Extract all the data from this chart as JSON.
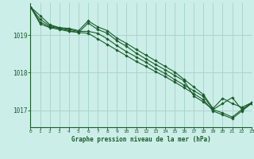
{
  "title": "Graphe pression niveau de la mer (hPa)",
  "background_color": "#cceee8",
  "grid_color": "#aad4cc",
  "line_color": "#1a5c2a",
  "marker_color": "#1a5c2a",
  "xlim": [
    0,
    23
  ],
  "ylim": [
    1016.55,
    1019.85
  ],
  "yticks": [
    1017,
    1018,
    1019
  ],
  "xticks": [
    0,
    1,
    2,
    3,
    4,
    5,
    6,
    7,
    8,
    9,
    10,
    11,
    12,
    13,
    14,
    15,
    16,
    17,
    18,
    19,
    20,
    21,
    22,
    23
  ],
  "lines": [
    [
      1019.75,
      1019.52,
      1019.28,
      1019.2,
      1019.18,
      1019.12,
      1019.38,
      1019.22,
      1019.12,
      1018.92,
      1018.78,
      1018.62,
      1018.47,
      1018.32,
      1018.17,
      1018.02,
      1017.82,
      1017.62,
      1017.42,
      1017.05,
      1017.32,
      1017.18,
      1017.08,
      1017.2
    ],
    [
      1019.75,
      1019.42,
      1019.25,
      1019.19,
      1019.15,
      1019.1,
      1019.1,
      1019.05,
      1018.9,
      1018.72,
      1018.56,
      1018.42,
      1018.28,
      1018.12,
      1017.98,
      1017.82,
      1017.67,
      1017.52,
      1017.37,
      1017.02,
      1016.93,
      1016.82,
      1017.02,
      1017.2
    ],
    [
      1019.75,
      1019.35,
      1019.22,
      1019.18,
      1019.12,
      1019.07,
      1019.05,
      1018.9,
      1018.75,
      1018.6,
      1018.45,
      1018.3,
      1018.17,
      1018.03,
      1017.9,
      1017.75,
      1017.6,
      1017.44,
      1017.28,
      1016.98,
      1016.88,
      1016.78,
      1016.98,
      1017.18
    ],
    [
      1019.75,
      1019.3,
      1019.2,
      1019.15,
      1019.1,
      1019.07,
      1019.32,
      1019.15,
      1019.05,
      1018.85,
      1018.7,
      1018.52,
      1018.37,
      1018.22,
      1018.08,
      1017.93,
      1017.78,
      1017.38,
      1017.22,
      1017.02,
      1017.18,
      1017.34,
      1017.02,
      1017.18
    ]
  ]
}
